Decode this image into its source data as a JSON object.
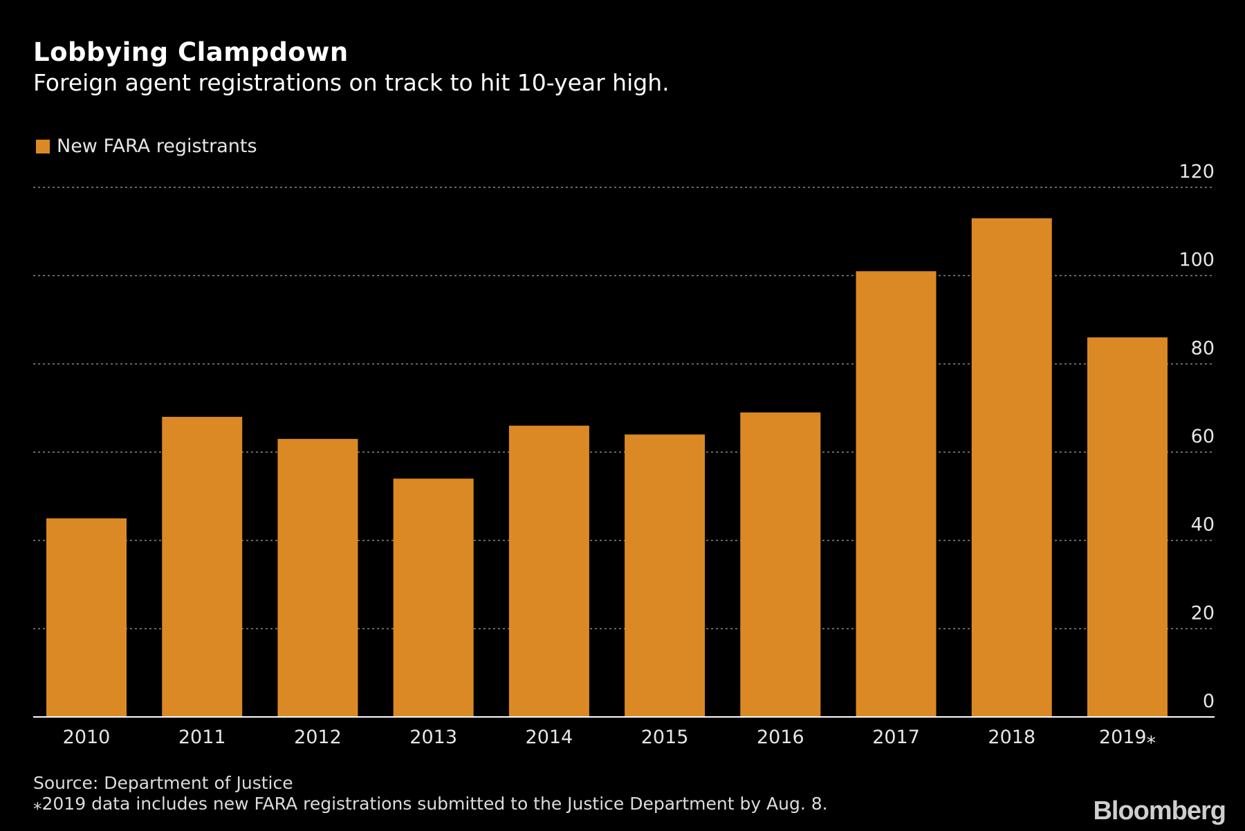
{
  "title": "Lobbying Clampdown",
  "subtitle": "Foreign agent registrations on track to hit 10-year high.",
  "source": "Source: Department of Justice",
  "footnote": "⁎2019 data includes new FARA registrations submitted to the Justice Department by Aug. 8.",
  "brand": "Bloomberg",
  "colors": {
    "bar": "#DB8924",
    "background": "#000000",
    "grid": "#8a8a8a",
    "axis": "#ffffff"
  },
  "chart_data": {
    "type": "bar",
    "categories": [
      "2010",
      "2011",
      "2012",
      "2013",
      "2014",
      "2015",
      "2016",
      "2017",
      "2018",
      "2019⁎"
    ],
    "series": [
      {
        "name": "New FARA registrants",
        "values": [
          45,
          68,
          63,
          54,
          66,
          64,
          69,
          101,
          113,
          86
        ]
      }
    ],
    "ylim": [
      0,
      120
    ],
    "yticks": [
      0,
      20,
      40,
      60,
      80,
      100,
      120
    ],
    "xlabel": "",
    "ylabel": "",
    "grid": true,
    "legend": "top-left",
    "y_axis_position": "right"
  }
}
